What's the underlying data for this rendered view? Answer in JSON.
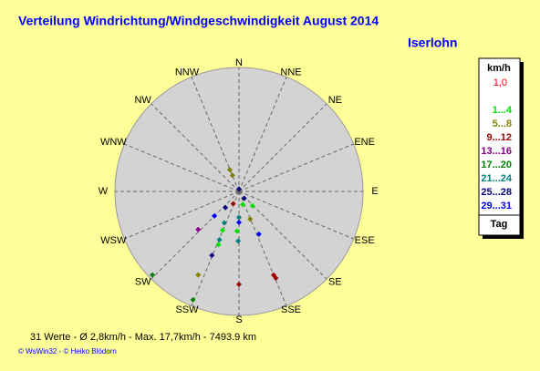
{
  "chart_data": {
    "type": "polar-scatter",
    "title": "Verteilung Windrichtung/Windgeschwindigkeit  August 2014",
    "location": "Iserlohn",
    "directions": [
      "N",
      "NNE",
      "NE",
      "ENE",
      "E",
      "ESE",
      "SE",
      "SSE",
      "S",
      "SSW",
      "SW",
      "WSW",
      "W",
      "WNW",
      "NW",
      "NNW"
    ],
    "unit": "km/h",
    "radial_max": {
      "value": 1,
      "label": "1,0"
    },
    "legend_title": "Tag",
    "series": [
      {
        "name": "1...4",
        "color": "#00e000",
        "angles": [
          164,
          137,
          203,
          183,
          201
        ],
        "values": [
          0.11,
          0.16,
          0.34,
          0.32,
          0.46
        ]
      },
      {
        "name": "5...8",
        "color": "#808000",
        "angles": [
          337,
          338,
          158,
          206
        ],
        "values": [
          0.19,
          0.14,
          0.24,
          0.75
        ]
      },
      {
        "name": "9...12",
        "color": "#a00000",
        "angles": [
          205,
          157.5,
          157,
          180
        ],
        "values": [
          0.11,
          0.73,
          0.76,
          0.75
        ]
      },
      {
        "name": "13...16",
        "color": "#800080",
        "angles": [
          227
        ],
        "values": [
          0.45
        ]
      },
      {
        "name": "17...20",
        "color": "#008000",
        "angles": [
          226,
          203
        ],
        "values": [
          0.97,
          0.95
        ]
      },
      {
        "name": "21...24",
        "color": "#008080",
        "angles": [
          180,
          205,
          202,
          181
        ],
        "values": [
          0.21,
          0.28,
          0.42,
          0.4
        ]
      },
      {
        "name": "25...28",
        "color": "#000080",
        "angles": [
          0,
          143,
          220,
          203
        ],
        "values": [
          0.02,
          0.07,
          0.17,
          0.56
        ]
      },
      {
        "name": "29...31",
        "color": "#0000ff",
        "angles": [
          225,
          180,
          155
        ],
        "values": [
          0.28,
          0.25,
          0.38
        ]
      }
    ],
    "summary": "31 Werte  -  Ø 2,8km/h  -  Max. 17,7km/h  -  7493.9 km",
    "credits": "© WsWin32  -  © Heiko Blödorn"
  }
}
